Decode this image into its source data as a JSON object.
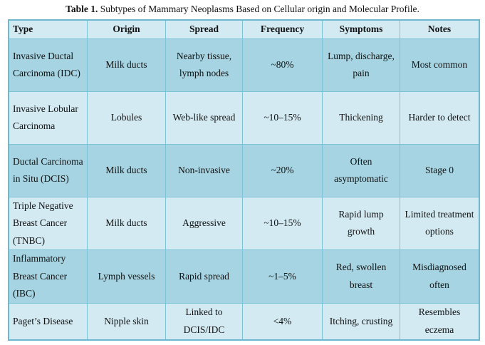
{
  "caption": {
    "label": "Table 1.",
    "text": " Subtypes of Mammary Neoplasms Based on Cellular origin and Molecular Profile."
  },
  "colors": {
    "header_row": "#d3eaf2",
    "light_row": "#d3eaf2",
    "dark_row": "#a6d4e2",
    "border": "#7cc3d8"
  },
  "headers": [
    "Type",
    "Origin",
    "Spread",
    "Frequency",
    "Symptoms",
    "Notes"
  ],
  "rows": [
    [
      "Invasive Ductal Carcinoma (IDC)",
      "Milk ducts",
      "Nearby tissue, lymph nodes",
      "~80%",
      "Lump, discharge, pain",
      "Most common"
    ],
    [
      "Invasive Lobular Carcinoma",
      "Lobules",
      "Web-like spread",
      "~10–15%",
      "Thickening",
      "Harder to detect"
    ],
    [
      "Ductal Carcinoma in Situ (DCIS)",
      "Milk ducts",
      "Non-invasive",
      "~20%",
      "Often asymptomatic",
      "Stage 0"
    ],
    [
      "Triple Negative Breast Cancer (TNBC)",
      "Milk ducts",
      "Aggressive",
      "~10–15%",
      "Rapid lump growth",
      "Limited treatment options"
    ],
    [
      "Inflammatory Breast Cancer (IBC)",
      "Lymph vessels",
      "Rapid spread",
      "~1–5%",
      "Red, swollen breast",
      "Misdiagnosed often"
    ],
    [
      "Paget’s Disease",
      "Nipple skin",
      "Linked to DCIS/IDC",
      "<4%",
      "Itching, crusting",
      "Resembles eczema"
    ]
  ]
}
